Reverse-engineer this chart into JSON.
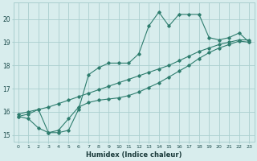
{
  "xlabel": "Humidex (Indice chaleur)",
  "x_values": [
    0,
    1,
    2,
    3,
    4,
    5,
    6,
    7,
    8,
    9,
    10,
    11,
    12,
    13,
    14,
    15,
    16,
    17,
    18,
    19,
    20,
    21,
    22,
    23
  ],
  "line1_y": [
    15.8,
    15.7,
    15.3,
    15.1,
    15.1,
    15.2,
    16.1,
    17.6,
    17.9,
    18.1,
    18.1,
    18.1,
    18.5,
    19.7,
    20.3,
    19.7,
    20.2,
    20.2,
    20.2,
    19.2,
    19.1,
    19.2,
    19.4,
    19.0
  ],
  "line2_y": [
    15.9,
    16.0,
    16.1,
    16.2,
    16.35,
    16.5,
    16.65,
    16.8,
    16.95,
    17.1,
    17.25,
    17.4,
    17.55,
    17.7,
    17.85,
    18.0,
    18.2,
    18.4,
    18.6,
    18.75,
    18.9,
    19.0,
    19.1,
    19.1
  ],
  "line3_y": [
    15.8,
    15.9,
    16.1,
    15.1,
    15.2,
    15.7,
    16.2,
    16.4,
    16.5,
    16.55,
    16.6,
    16.7,
    16.85,
    17.05,
    17.25,
    17.5,
    17.75,
    18.0,
    18.3,
    18.55,
    18.75,
    18.9,
    19.05,
    19.0
  ],
  "line_color": "#2e7d6e",
  "bg_color": "#d8eded",
  "grid_color": "#aacfcf",
  "ylim": [
    14.7,
    20.7
  ],
  "yticks": [
    15,
    16,
    17,
    18,
    19,
    20
  ],
  "xlim": [
    -0.5,
    23.5
  ],
  "xticks": [
    0,
    1,
    2,
    3,
    4,
    5,
    6,
    7,
    8,
    9,
    10,
    11,
    12,
    13,
    14,
    15,
    16,
    17,
    18,
    19,
    20,
    21,
    22,
    23
  ]
}
